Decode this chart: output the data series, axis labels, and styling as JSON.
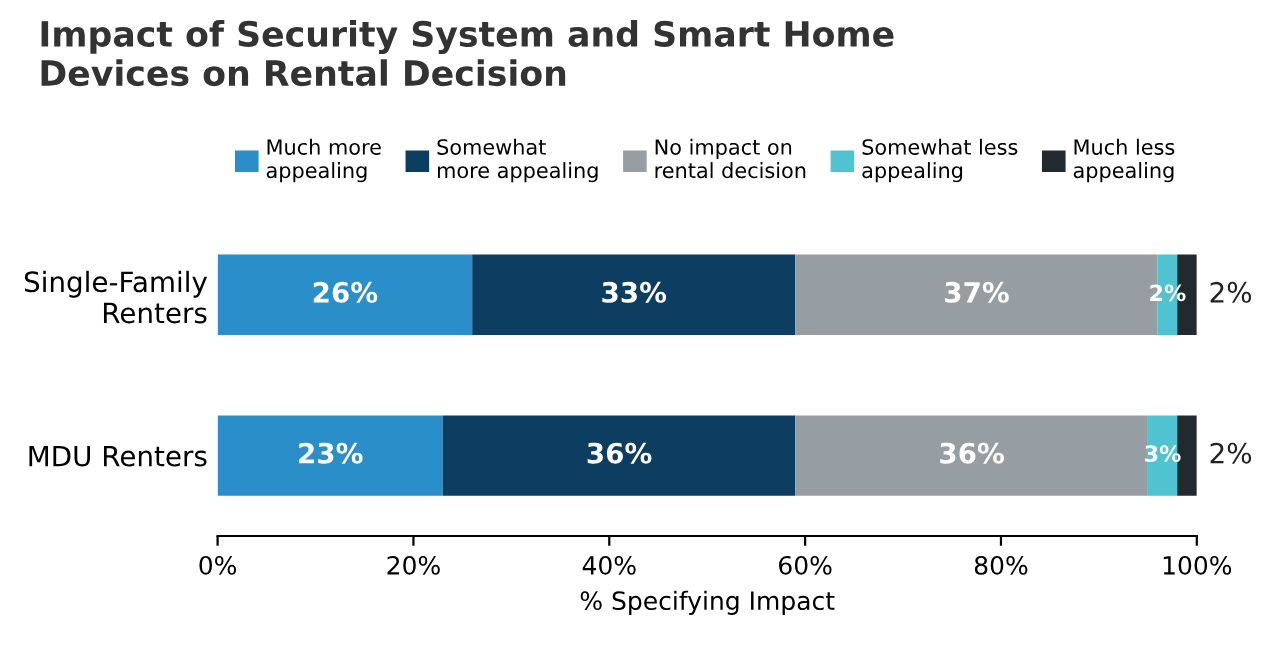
{
  "chart_data": {
    "type": "bar",
    "orientation": "horizontal",
    "stacked": true,
    "title": "Impact of Security System and Smart Home\nDevices on Rental Decision",
    "xlabel": "% Specifying Impact",
    "categories": [
      "Single-Family\nRenters",
      "MDU Renters"
    ],
    "series": [
      {
        "name": "Much more\nappealing",
        "color": "#2a8fc9",
        "values": [
          26,
          23
        ],
        "value_labels": [
          "26%",
          "23%"
        ]
      },
      {
        "name": "Somewhat\nmore appealing",
        "color": "#0e3d62",
        "values": [
          33,
          36
        ],
        "value_labels": [
          "33%",
          "36%"
        ]
      },
      {
        "name": "No impact on\nrental decision",
        "color": "#969ea3",
        "values": [
          37,
          36
        ],
        "value_labels": [
          "37%",
          "36%"
        ]
      },
      {
        "name": "Somewhat less\nappealing",
        "color": "#4fc3cf",
        "values": [
          2,
          3
        ],
        "value_labels": [
          "2%",
          "3%"
        ]
      },
      {
        "name": "Much less\nappealing",
        "color": "#222a30",
        "values": [
          2,
          2
        ],
        "value_labels": [
          "2%",
          "2%"
        ]
      }
    ],
    "xlim": [
      0,
      100
    ],
    "xticks": [
      {
        "value": 0,
        "label": "0%"
      },
      {
        "value": 20,
        "label": "20%"
      },
      {
        "value": 40,
        "label": "40%"
      },
      {
        "value": 60,
        "label": "60%"
      },
      {
        "value": 80,
        "label": "80%"
      },
      {
        "value": 100,
        "label": "100%"
      }
    ],
    "legend": "top",
    "grid": false
  }
}
